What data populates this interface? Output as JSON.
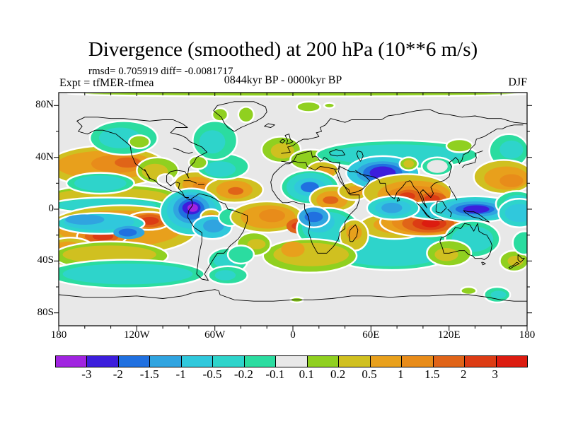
{
  "header": {
    "title": "Divergence (smoothed) at 200 hPa (10**6 m/s)",
    "stats": "rmsd= 0.705919 diff= -0.0081717",
    "experiment": "Expt = tfMER-tfmea",
    "period": "0844kyr BP - 0000kyr BP",
    "season": "DJF"
  },
  "chart_data": {
    "type": "heatmap",
    "title": "Divergence (smoothed) at 200 hPa (10**6 m/s)",
    "variable": "divergence",
    "units": "10**6 m/s",
    "stats": {
      "rmsd": 0.705919,
      "diff": -0.0081717
    },
    "experiment": "tfMER-tfmea",
    "period": "0844kyr BP - 0000kyr BP",
    "season": "DJF",
    "projection": "equirectangular",
    "lon_range": [
      -180,
      180
    ],
    "lat_range": [
      -90,
      90
    ],
    "x_tick_lons": [
      -180,
      -120,
      -60,
      0,
      60,
      120,
      180
    ],
    "x_tick_labels": [
      "180",
      "120W",
      "60W",
      "0",
      "60E",
      "120E",
      "180"
    ],
    "y_tick_lats": [
      80,
      40,
      0,
      -40,
      -80
    ],
    "y_tick_labels": [
      "80N",
      "40N",
      "0",
      "40S",
      "80S"
    ],
    "colorbar": {
      "levels": [
        -3,
        -2,
        -1.5,
        -1,
        -0.5,
        -0.2,
        -0.1,
        0.1,
        0.2,
        0.5,
        1,
        1.5,
        2,
        3
      ],
      "colors": [
        "#A024E0",
        "#3C1EDC",
        "#2070E0",
        "#30A4E0",
        "#30C8DC",
        "#2ED4CB",
        "#2BDCA0",
        "#E8E8E8",
        "#90D020",
        "#D0C020",
        "#E8A01C",
        "#E88C1A",
        "#E06418",
        "#DC3C14",
        "#DC1C10"
      ],
      "background": "#E8E8E8"
    },
    "features_encoding": "each feature = list of rings [lon, lat, rx_deg, ry_deg, value]; rings outer-to-inner; value selects colorbar bin; approximate filled-contour blobs",
    "features": [
      [
        [
          5,
          89,
          178,
          2,
          0.15
        ]
      ],
      [
        [
          -143,
          33,
          46,
          16,
          0.35
        ],
        [
          -144,
          34,
          38,
          11,
          0.75
        ],
        [
          -135,
          35,
          20,
          7,
          1.2
        ],
        [
          -127,
          36,
          10,
          4,
          1.7
        ]
      ],
      [
        [
          -138,
          10,
          50,
          9,
          0.15
        ],
        [
          -140,
          10,
          44,
          6,
          0.35
        ]
      ],
      [
        [
          -148,
          20,
          26,
          8,
          -0.15
        ],
        [
          -148,
          20,
          20,
          6,
          -0.35
        ]
      ],
      [
        [
          -142,
          3,
          44,
          6,
          -0.15
        ],
        [
          -143,
          3,
          38,
          5,
          -0.35
        ]
      ],
      [
        [
          -104,
          30,
          16,
          10,
          0.15
        ],
        [
          -106,
          29,
          10,
          6,
          0.35
        ]
      ],
      [
        [
          -75,
          20,
          16,
          9,
          0.35
        ],
        [
          -74,
          19,
          11,
          6,
          0.75
        ],
        [
          -71,
          18,
          6,
          3,
          1.2
        ]
      ],
      [
        [
          -98,
          23,
          6,
          4,
          0
        ]
      ],
      [
        [
          -45,
          15,
          22,
          10,
          0.35
        ],
        [
          -45,
          15,
          14,
          7,
          0.75
        ],
        [
          -44,
          14,
          6,
          3,
          1.7
        ]
      ],
      [
        [
          -54,
          33,
          20,
          10,
          -0.15
        ],
        [
          -56,
          31,
          12,
          6,
          -0.35
        ]
      ],
      [
        [
          -73,
          36,
          7,
          5,
          0.15
        ]
      ],
      [
        [
          -130,
          55,
          26,
          13,
          -0.15
        ],
        [
          -133,
          55,
          16,
          8,
          -0.35
        ]
      ],
      [
        [
          -118,
          52,
          8,
          5,
          0.15
        ]
      ],
      [
        [
          -60,
          53,
          17,
          15,
          -0.15
        ],
        [
          -62,
          52,
          10,
          9,
          -0.35
        ]
      ],
      [
        [
          -56,
          73,
          6,
          5,
          0.15
        ]
      ],
      [
        [
          -36,
          73,
          6,
          6,
          0.15
        ]
      ],
      [
        [
          12,
          79,
          9,
          4,
          0.15
        ]
      ],
      [
        [
          28,
          80,
          4,
          2,
          0.15
        ]
      ],
      [
        [
          -9,
          46,
          15,
          10,
          0.15
        ],
        [
          -8,
          45,
          9,
          6,
          0.35
        ]
      ],
      [
        [
          14,
          38,
          16,
          8,
          0.15
        ]
      ],
      [
        [
          23,
          30,
          12,
          7,
          0.35
        ],
        [
          25,
          29,
          7,
          4,
          0.75
        ]
      ],
      [
        [
          36,
          46,
          7,
          4,
          0.15
        ]
      ],
      [
        [
          13,
          17,
          22,
          13,
          -0.15
        ],
        [
          13,
          17,
          18,
          11,
          -0.35
        ],
        [
          13,
          17,
          12,
          7,
          -0.75
        ],
        [
          13,
          17,
          7,
          4,
          -1.7
        ]
      ],
      [
        [
          31,
          8,
          18,
          10,
          0.35
        ],
        [
          30,
          7,
          12,
          7,
          0.75
        ],
        [
          29,
          7,
          6,
          3,
          1.7
        ]
      ],
      [
        [
          47,
          14,
          12,
          7,
          0.35
        ],
        [
          48,
          14,
          7,
          4,
          0.75
        ]
      ],
      [
        [
          80,
          42,
          62,
          11,
          -0.15
        ],
        [
          80,
          42,
          52,
          8,
          -0.35
        ]
      ],
      [
        [
          69,
          28,
          28,
          13,
          -0.75
        ],
        [
          69,
          28,
          20,
          9,
          -1.2
        ],
        [
          69,
          28,
          15,
          7,
          -1.7
        ],
        [
          69,
          28,
          10,
          5,
          -2.5
        ]
      ],
      [
        [
          89,
          35,
          7,
          5,
          0.15
        ],
        [
          89,
          35,
          4,
          3,
          0.35
        ]
      ],
      [
        [
          111,
          33,
          12,
          7,
          -0.15
        ],
        [
          111,
          33,
          8,
          5,
          0
        ]
      ],
      [
        [
          166,
          45,
          15,
          13,
          -0.15
        ],
        [
          168,
          46,
          9,
          7,
          -0.35
        ]
      ],
      [
        [
          128,
          49,
          10,
          5,
          0.15
        ]
      ],
      [
        [
          88,
          13,
          34,
          14,
          0.35
        ],
        [
          93,
          11,
          28,
          11,
          0.75
        ],
        [
          94,
          10,
          22,
          8,
          1.2
        ],
        [
          89,
          10,
          10,
          5,
          1.7
        ],
        [
          88,
          10,
          6,
          3,
          2.5
        ],
        [
          108,
          8,
          10,
          5,
          1.7
        ],
        [
          107,
          8,
          6,
          3,
          2.5
        ]
      ],
      [
        [
          162,
          25,
          23,
          13,
          0.35
        ],
        [
          164,
          24,
          17,
          9,
          0.75
        ],
        [
          168,
          22,
          9,
          5,
          1.2
        ]
      ],
      [
        [
          76,
          -31,
          52,
          16,
          -0.15
        ],
        [
          75,
          -32,
          44,
          12,
          -0.35
        ]
      ],
      [
        [
          78,
          -13,
          27,
          10,
          0.35
        ],
        [
          82,
          -12,
          20,
          7,
          0.75
        ],
        [
          88,
          -11,
          11,
          4,
          1.2
        ]
      ],
      [
        [
          101,
          -10,
          34,
          11,
          0.75
        ],
        [
          103,
          -10,
          27,
          9,
          1.2
        ],
        [
          104,
          -11,
          20,
          7,
          1.7
        ],
        [
          105,
          -11,
          13,
          5,
          2.5
        ],
        [
          106,
          -11,
          7,
          3,
          3.5
        ]
      ],
      [
        [
          112,
          -1,
          28,
          7,
          -0.35
        ],
        [
          112,
          -1,
          22,
          5,
          -0.75
        ]
      ],
      [
        [
          77,
          1,
          20,
          9,
          -0.35
        ],
        [
          77,
          1,
          14,
          6,
          -0.75
        ],
        [
          76,
          1,
          8,
          4,
          -1.2
        ]
      ],
      [
        [
          140,
          0,
          34,
          10,
          -0.35
        ],
        [
          140,
          0,
          27,
          8,
          -0.75
        ],
        [
          140,
          0,
          20,
          6,
          -1.2
        ],
        [
          140,
          0,
          15,
          4,
          -1.7
        ],
        [
          141,
          0,
          10,
          3,
          -2.5
        ]
      ],
      [
        [
          172,
          4,
          16,
          10,
          -0.15
        ],
        [
          173,
          4,
          11,
          7,
          -0.35
        ]
      ],
      [
        [
          174,
          -3,
          16,
          11,
          -0.35
        ],
        [
          174,
          -3,
          11,
          7,
          -0.75
        ]
      ],
      [
        [
          -132,
          -16,
          58,
          19,
          0.35
        ],
        [
          -133,
          -15,
          48,
          14,
          0.75
        ]
      ],
      [
        [
          -147,
          -21,
          19,
          8,
          1.2
        ],
        [
          -147,
          -21,
          13,
          5,
          1.7
        ],
        [
          -146,
          -21,
          8,
          3,
          2.5
        ]
      ],
      [
        [
          -111,
          -9,
          17,
          7,
          1.2
        ],
        [
          -110,
          -9,
          12,
          5,
          1.7
        ],
        [
          -110,
          -9,
          7,
          3,
          2.5
        ]
      ],
      [
        [
          -148,
          -11,
          34,
          8,
          -0.35
        ],
        [
          -149,
          -10,
          27,
          6,
          -0.75
        ],
        [
          -160,
          -8,
          15,
          4,
          -1.2
        ],
        [
          -126,
          -18,
          12,
          5,
          -1.2
        ],
        [
          -127,
          -18,
          7,
          3,
          -1.7
        ]
      ],
      [
        [
          -78,
          -2,
          24,
          18,
          -0.35
        ],
        [
          -78,
          -1,
          19,
          14,
          -0.75
        ],
        [
          -78,
          0,
          14,
          11,
          -1.2
        ],
        [
          -78,
          0,
          10,
          8,
          -1.7
        ],
        [
          -78,
          1,
          7,
          5,
          -2.5
        ],
        [
          -77,
          1,
          4,
          3,
          -3.5
        ]
      ],
      [
        [
          -63,
          -6,
          8,
          6,
          0.35
        ],
        [
          -63,
          -6,
          4,
          3,
          0.75
        ]
      ],
      [
        [
          -62,
          -14,
          15,
          9,
          -0.75
        ],
        [
          -61,
          -13,
          8,
          5,
          -1.2
        ]
      ],
      [
        [
          -48,
          -6,
          9,
          7,
          -0.15
        ]
      ],
      [
        [
          -20,
          -6,
          28,
          12,
          0.35
        ],
        [
          -19,
          -6,
          21,
          9,
          0.75
        ],
        [
          -16,
          -5,
          10,
          5,
          1.2
        ],
        [
          5,
          -13,
          10,
          6,
          1.7
        ],
        [
          5,
          -13,
          6,
          3,
          2.5
        ]
      ],
      [
        [
          27,
          -15,
          24,
          16,
          -0.15
        ],
        [
          26,
          -14,
          19,
          12,
          -0.35
        ],
        [
          20,
          -10,
          12,
          8,
          -0.75
        ]
      ],
      [
        [
          16,
          -6,
          12,
          8,
          -1.2
        ],
        [
          16,
          -6,
          7,
          4,
          -1.7
        ]
      ],
      [
        [
          47,
          -20,
          11,
          12,
          0.35
        ],
        [
          47,
          -18,
          6,
          6,
          0.75
        ]
      ],
      [
        [
          138,
          -23,
          21,
          14,
          -0.15
        ],
        [
          138,
          -23,
          16,
          10,
          -0.35
        ]
      ],
      [
        [
          120,
          -34,
          17,
          10,
          0.15
        ],
        [
          118,
          -35,
          9,
          5,
          0.35
        ]
      ],
      [
        [
          13,
          -36,
          36,
          13,
          0.15
        ],
        [
          14,
          -35,
          29,
          9,
          0.35
        ],
        [
          0,
          -31,
          9,
          6,
          0.75
        ]
      ],
      [
        [
          -30,
          -27,
          13,
          9,
          0.15
        ],
        [
          -28,
          -27,
          7,
          4,
          0.35
        ]
      ],
      [
        [
          -50,
          -40,
          15,
          10,
          -0.15
        ],
        [
          -52,
          -40,
          9,
          5,
          -0.35
        ]
      ],
      [
        [
          -40,
          -35,
          10,
          7,
          -0.15
        ]
      ],
      [
        [
          -171,
          -33,
          20,
          11,
          0.35
        ],
        [
          -173,
          -33,
          13,
          8,
          0.75
        ]
      ],
      [
        [
          -140,
          -36,
          44,
          11,
          0.15
        ],
        [
          -141,
          -35,
          36,
          7,
          0.35
        ]
      ],
      [
        [
          -128,
          -50,
          60,
          11,
          -0.15
        ],
        [
          -127,
          -50,
          50,
          8,
          -0.35
        ]
      ],
      [
        [
          -50,
          -51,
          15,
          7,
          -0.15
        ],
        [
          -52,
          -51,
          8,
          4,
          -0.35
        ]
      ],
      [
        [
          170,
          -40,
          11,
          8,
          0.15
        ],
        [
          171,
          -40,
          6,
          4,
          0.35
        ]
      ],
      [
        [
          178,
          -26,
          9,
          9,
          -0.15
        ]
      ],
      [
        [
          157,
          -66,
          10,
          6,
          -0.15
        ],
        [
          158,
          -66,
          6,
          3,
          -0.35
        ]
      ],
      [
        [
          135,
          -63,
          6,
          3,
          0.15
        ]
      ],
      [
        [
          3,
          -70,
          5,
          2,
          0.15
        ]
      ]
    ]
  }
}
